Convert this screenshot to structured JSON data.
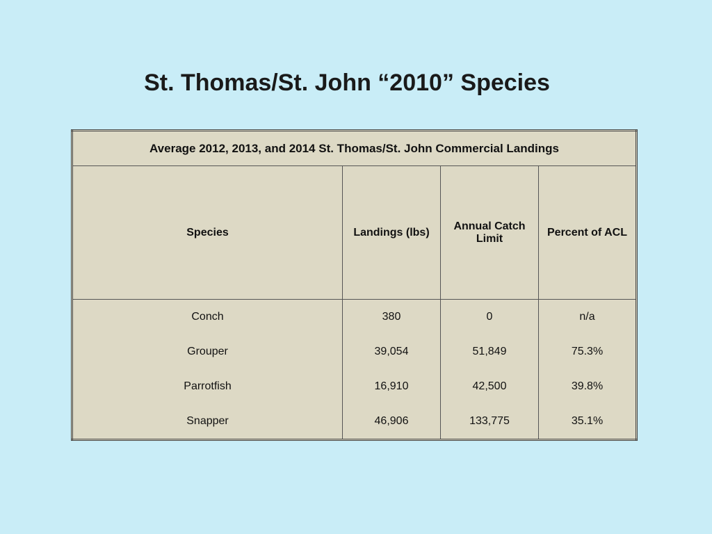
{
  "title": "St. Thomas/St. John “2010” Species",
  "table": {
    "caption": "Average 2012, 2013, and 2014 St. Thomas/St. John Commercial Landings",
    "header": [
      "Species",
      "Landings (lbs)",
      "Annual Catch Limit",
      "Percent of ACL"
    ],
    "rows": [
      [
        "Conch",
        "380",
        "0",
        "n/a"
      ],
      [
        "Grouper",
        "39,054",
        "51,849",
        "75.3%"
      ],
      [
        "Parrotfish",
        "16,910",
        "42,500",
        "39.8%"
      ],
      [
        "Snapper",
        "46,906",
        "133,775",
        "35.1%"
      ]
    ]
  }
}
